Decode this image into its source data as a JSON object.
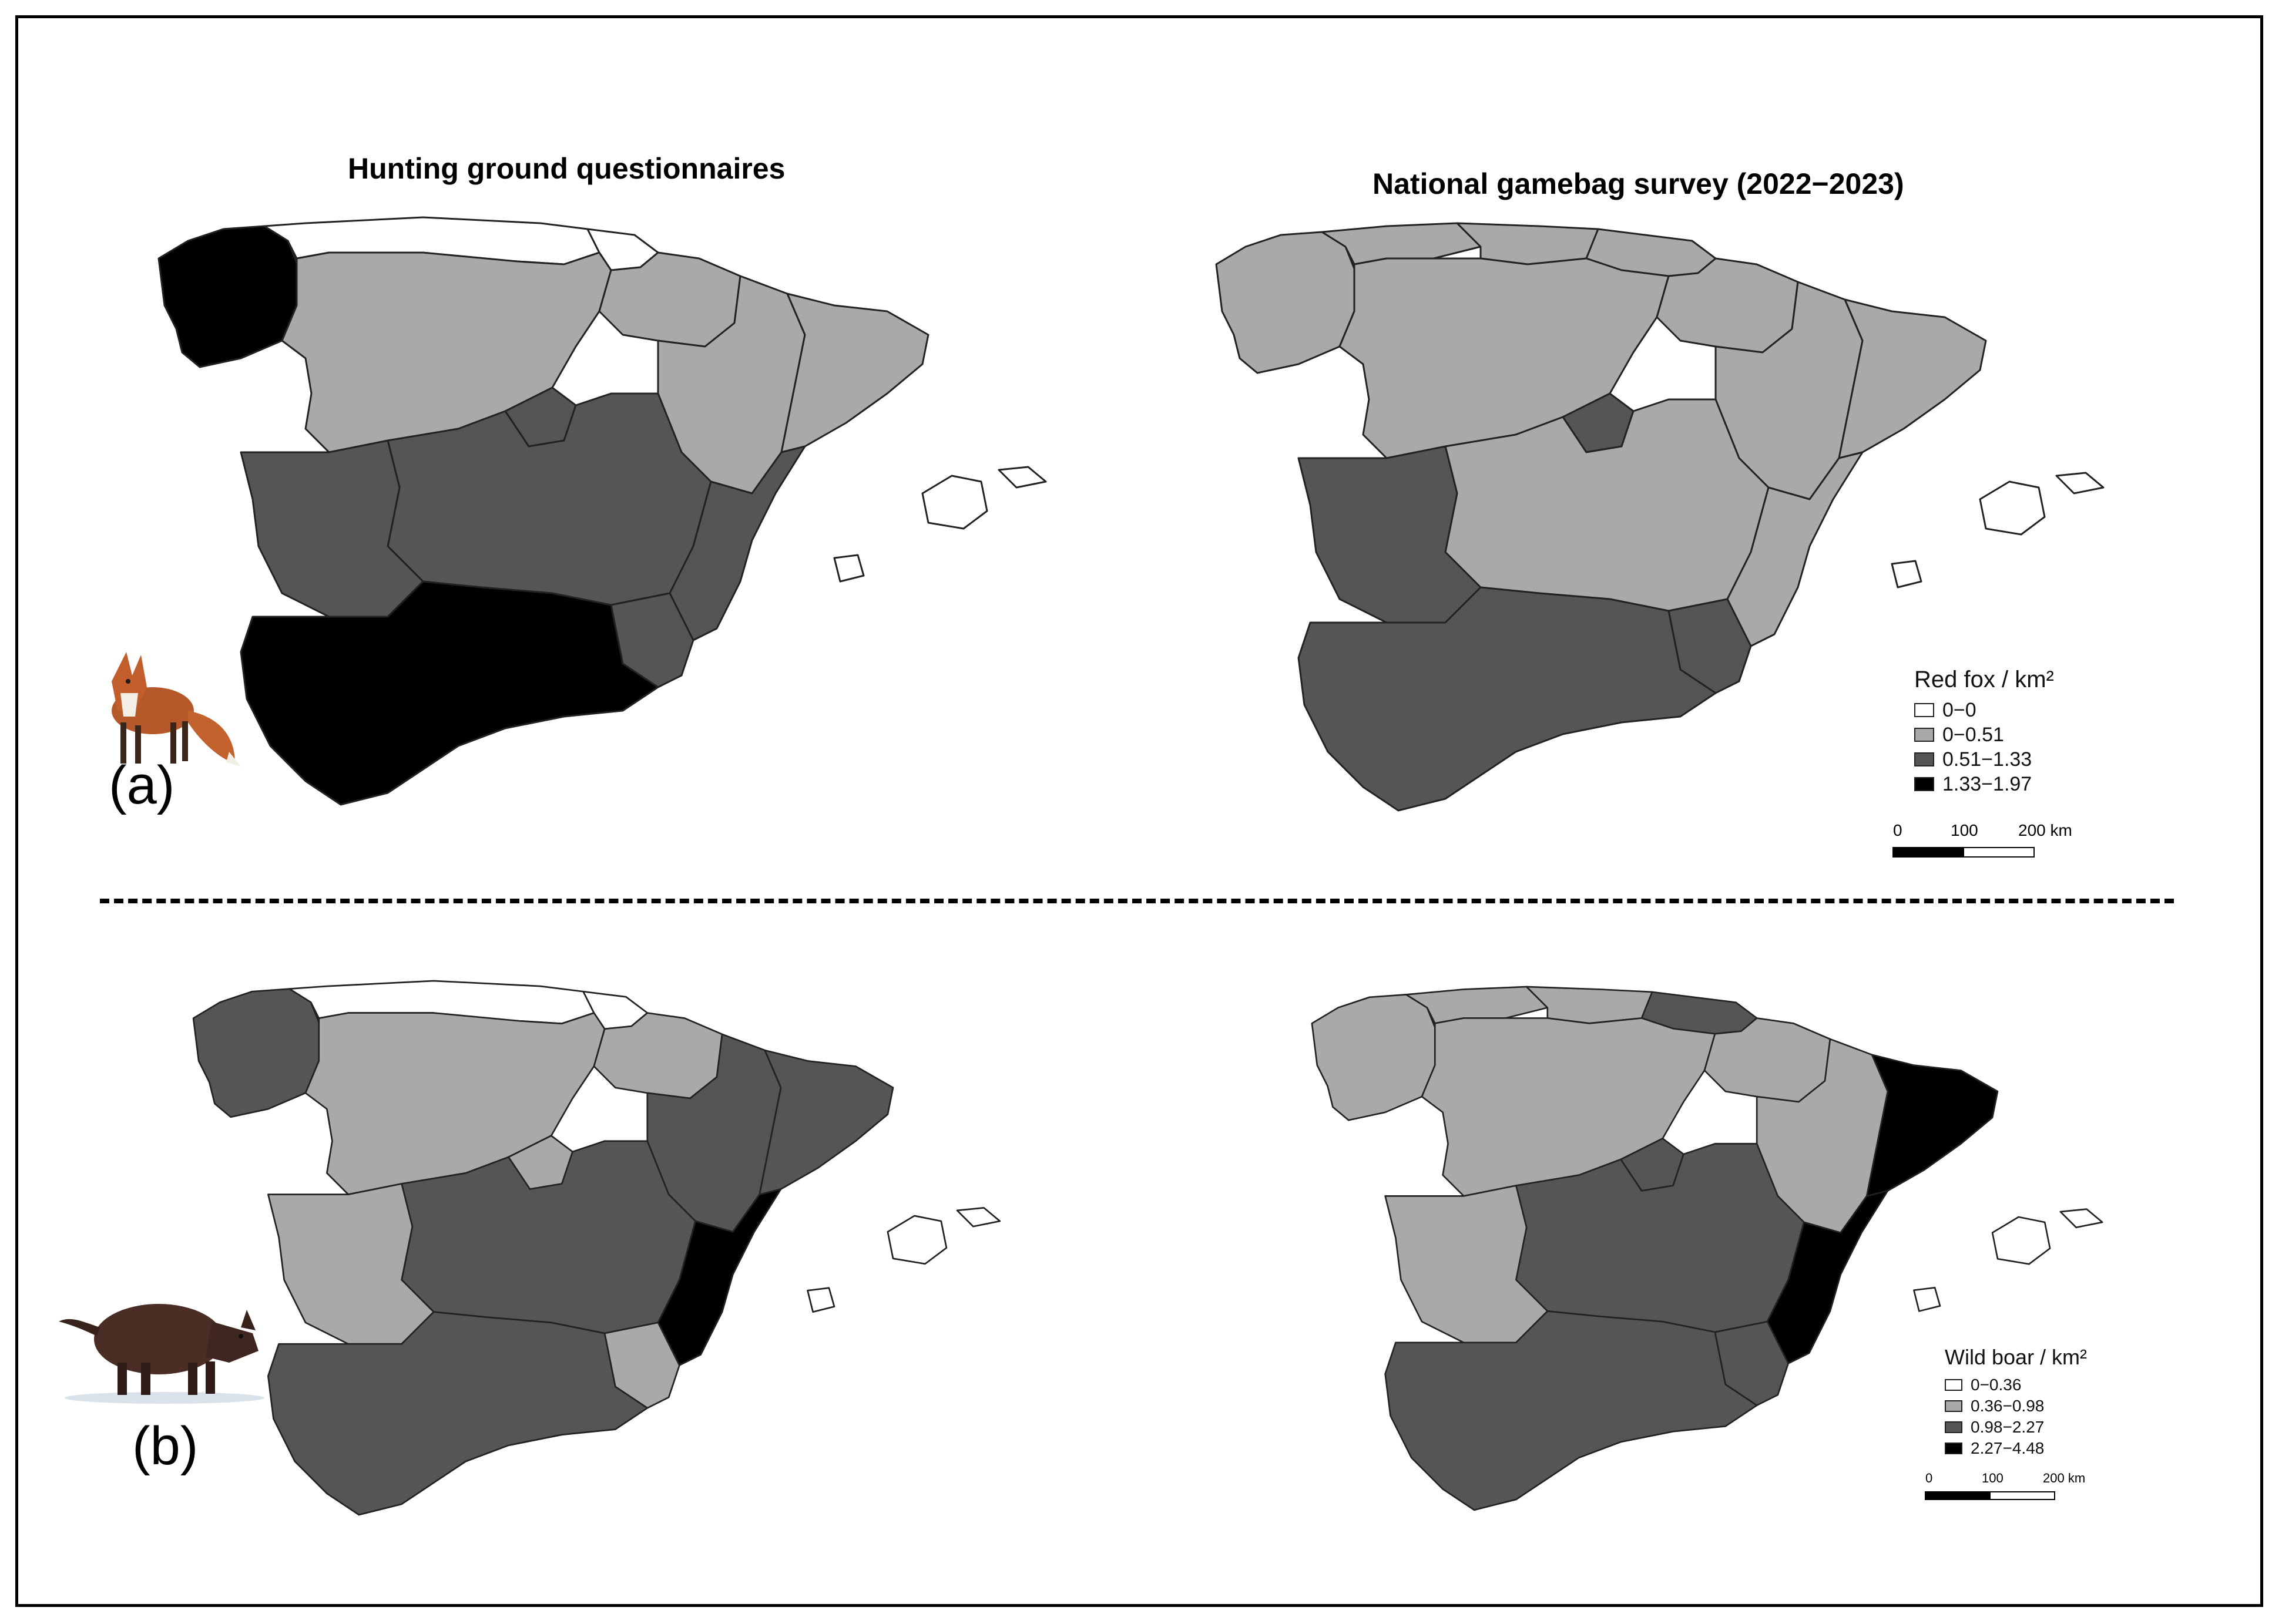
{
  "titles": {
    "left": "Hunting ground questionnaires",
    "right": "National gamebag survey (2022−2023)"
  },
  "panels": [
    {
      "label": "(a)",
      "animal_icon": "red-fox-illustration"
    },
    {
      "label": "(b)",
      "animal_icon": "wild-boar-illustration"
    }
  ],
  "colors": {
    "class0": "#ffffff",
    "class1": "#a9a9a9",
    "class2": "#555555",
    "class3": "#000000"
  },
  "legends": {
    "fox": {
      "title": "Red fox / km²",
      "items": [
        "0−0",
        "0−0.51",
        "0.51−1.33",
        "1.33−1.97"
      ]
    },
    "boar": {
      "title": "Wild boar / km²",
      "items": [
        "0−0.36",
        "0.36−0.98",
        "0.98−2.27",
        "2.27−4.48"
      ]
    }
  },
  "scalebar": {
    "ticks": [
      "0",
      "100",
      "200 km"
    ]
  },
  "map_data": {
    "fox_questionnaires": {
      "galicia": 3,
      "cantabrian_strip": 0,
      "basque_country": 0,
      "castilla_leon": 1,
      "aragon": 1,
      "navarra": 1,
      "la_rioja": 1,
      "catalonia": 1,
      "madrid": 2,
      "castilla_la_mancha": 2,
      "extremadura": 2,
      "valencia": 2,
      "murcia": 2,
      "andalusia": 3,
      "balearic_islands": 0
    },
    "fox_gamebag": {
      "galicia": 1,
      "asturias": 1,
      "cantabria": 1,
      "basque_country": 1,
      "navarra": 1,
      "castilla_leon": 1,
      "aragon": 1,
      "catalonia": 1,
      "la_rioja": 1,
      "madrid": 2,
      "castilla_la_mancha": 1,
      "valencia": 1,
      "extremadura": 2,
      "andalusia": 2,
      "murcia": 2,
      "balearic_islands": 0
    },
    "boar_questionnaires": {
      "galicia": 2,
      "cantabrian_strip": 0,
      "basque_country": 0,
      "castilla_leon": 1,
      "la_rioja": 1,
      "navarra": 1,
      "madrid": 1,
      "extremadura": 1,
      "aragon": 2,
      "catalonia": 2,
      "castilla_la_mancha": 2,
      "andalusia": 2,
      "valencia": 3,
      "murcia": 1,
      "balearic_islands": 0
    },
    "boar_gamebag": {
      "galicia": 1,
      "asturias": 1,
      "cantabria": 1,
      "basque_country": 2,
      "navarra": 1,
      "castilla_leon": 1,
      "aragon": 1,
      "la_rioja": 1,
      "extremadura": 1,
      "catalonia": 3,
      "valencia": 3,
      "madrid": 2,
      "castilla_la_mancha": 2,
      "andalusia": 2,
      "murcia": 2,
      "balearic_islands": 0
    }
  }
}
